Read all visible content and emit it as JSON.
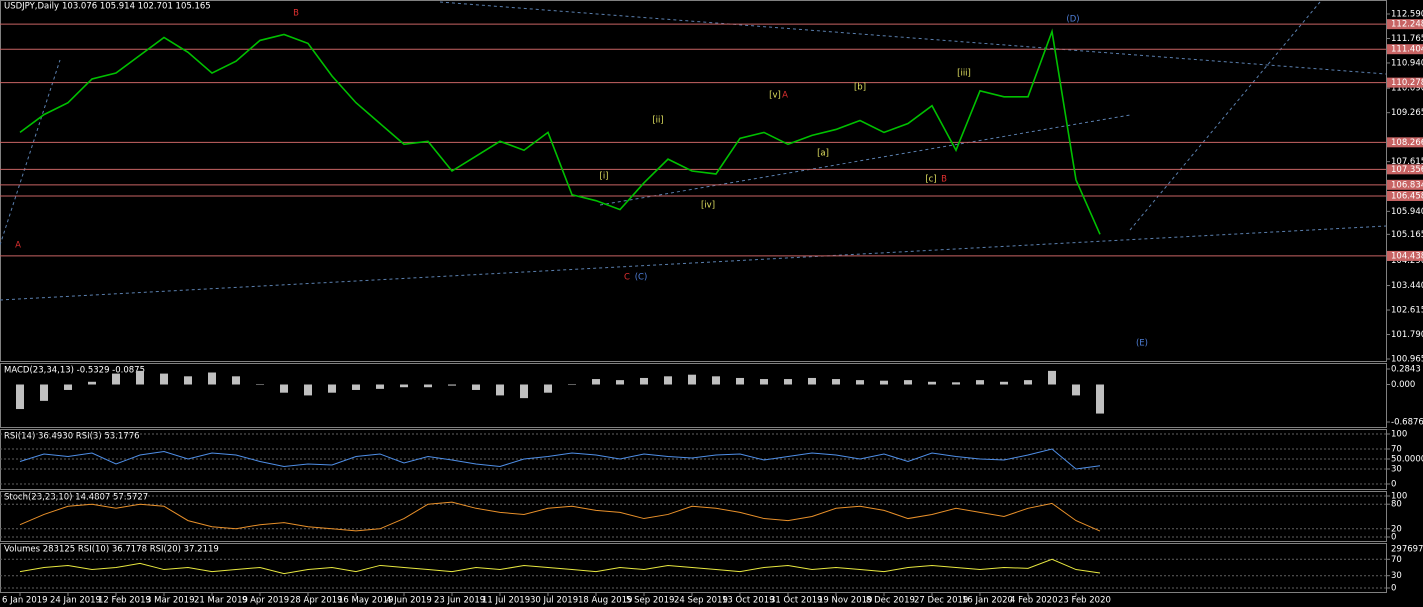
{
  "chart_data": [
    {
      "type": "line",
      "title": "USDJPY,Daily",
      "subtitle": "103.076 105.914 102.701 105.165",
      "categories": [
        "6 Jan 2019",
        null,
        "24 Jan 2019",
        null,
        "12 Feb 2019",
        null,
        "3 Mar 2019",
        null,
        "21 Mar 2019",
        null,
        "9 Apr 2019",
        null,
        "28 Apr 2019",
        null,
        "16 May 2019",
        null,
        "4 Jun 2019",
        null,
        "23 Jun 2019",
        null,
        "11 Jul 2019",
        null,
        "30 Jul 2019",
        null,
        "18 Aug 2019",
        null,
        "5 Sep 2019",
        null,
        "24 Sep 2019",
        null,
        "13 Oct 2019",
        null,
        "31 Oct 2019",
        null,
        "19 Nov 2019",
        null,
        "8 Dec 2019",
        null,
        "27 Dec 2019",
        null,
        "16 Jan 2020",
        null,
        "4 Feb 2020",
        null,
        "23 Feb 2020",
        null
      ],
      "values": [
        108.6,
        109.2,
        109.6,
        110.4,
        110.6,
        111.2,
        111.8,
        111.3,
        110.6,
        111.0,
        111.7,
        111.9,
        111.6,
        110.5,
        109.6,
        108.9,
        108.2,
        108.3,
        107.3,
        107.8,
        108.3,
        108.0,
        108.6,
        106.5,
        106.3,
        106.0,
        106.9,
        107.7,
        107.3,
        107.2,
        108.4,
        108.6,
        108.2,
        108.5,
        108.7,
        109.0,
        108.6,
        108.9,
        109.5,
        108.0,
        110.0,
        109.8,
        109.8,
        112.0,
        107.0,
        105.165
      ],
      "color": "#00c000",
      "ylim": [
        100.965,
        112.59
      ],
      "yticks": [
        {
          "value": 112.59,
          "label": "112.590"
        },
        111.765,
        {
          "value": 110.94,
          "label": "110.940"
        },
        {
          "value": 110.09,
          "label": "110.090"
        },
        109.265,
        107.615,
        {
          "value": 105.94,
          "label": "105.940"
        },
        105.165,
        {
          "value": 104.29,
          "label": "104.290"
        },
        {
          "value": 103.44,
          "label": "103.440"
        },
        102.615,
        {
          "value": 101.79,
          "label": "101.790"
        },
        100.965
      ],
      "levels": [
        112.248,
        111.404,
        110.278,
        108.266,
        107.356,
        106.834,
        106.458,
        104.438
      ],
      "level_color": "#c86464",
      "annotations": [
        {
          "text": "A",
          "color": "#e03030"
        },
        {
          "text": "B",
          "color": "#e03030"
        },
        {
          "text": "C",
          "color": "#e03030"
        },
        {
          "text": "(C)",
          "color": "#4f7fd8"
        },
        {
          "text": "(D)",
          "color": "#4f7fd8"
        },
        {
          "text": "(E)",
          "color": "#4f7fd8"
        },
        {
          "text": "A",
          "color": "#e03030"
        },
        {
          "text": "B",
          "color": "#e03030"
        },
        {
          "text": "[i]",
          "color": "#e0e060"
        },
        {
          "text": "[ii]",
          "color": "#e0e060"
        },
        {
          "text": "[iii]",
          "color": "#e0e060"
        },
        {
          "text": "[iv]",
          "color": "#e0e060"
        },
        {
          "text": "[v]",
          "color": "#e0e060"
        },
        {
          "text": "[a]",
          "color": "#e0e060"
        },
        {
          "text": "[b]",
          "color": "#e0e060"
        },
        {
          "text": "[c]",
          "color": "#e0e060"
        }
      ]
    },
    {
      "type": "bar",
      "title": "MACD(23,34,13) -0.5329 -0.0875",
      "color": "#c0c0c0",
      "values": [
        -0.45,
        -0.3,
        -0.1,
        0.05,
        0.2,
        0.25,
        0.2,
        0.15,
        0.22,
        0.15,
        0.0,
        -0.15,
        -0.2,
        -0.15,
        -0.1,
        -0.08,
        -0.05,
        -0.05,
        -0.02,
        -0.1,
        -0.2,
        -0.25,
        -0.15,
        0.0,
        0.1,
        0.08,
        0.12,
        0.15,
        0.18,
        0.15,
        0.12,
        0.1,
        0.1,
        0.12,
        0.1,
        0.08,
        0.07,
        0.08,
        0.05,
        0.04,
        0.08,
        0.05,
        0.08,
        0.25,
        -0.2,
        -0.5329
      ],
      "ylim": [
        -0.6876,
        0.2843
      ],
      "yticks": [
        0.2843,
        {
          "value": 0,
          "label": "0.000"
        },
        -0.6876
      ]
    },
    {
      "type": "line",
      "title": "RSI(14) 36.4930 RSI(3) 53.1776",
      "color": "#4f8fe8",
      "values": [
        45,
        60,
        55,
        62,
        40,
        58,
        65,
        50,
        62,
        58,
        45,
        35,
        40,
        38,
        55,
        60,
        42,
        55,
        48,
        40,
        35,
        50,
        55,
        62,
        58,
        50,
        60,
        55,
        52,
        58,
        60,
        48,
        55,
        62,
        58,
        50,
        60,
        45,
        62,
        55,
        50,
        48,
        58,
        70,
        30,
        36.49
      ],
      "ylim": [
        0,
        100
      ],
      "yticks": [
        100,
        70,
        {
          "value": 50,
          "label": "50.0000"
        },
        30,
        0
      ]
    },
    {
      "type": "line",
      "title": "Stoch(23,23,10) 14.4807 57.5727",
      "color": "#e8902a",
      "values": [
        30,
        55,
        75,
        80,
        70,
        80,
        75,
        40,
        25,
        20,
        30,
        35,
        25,
        20,
        15,
        20,
        45,
        80,
        85,
        70,
        60,
        55,
        70,
        75,
        65,
        60,
        45,
        55,
        75,
        70,
        60,
        45,
        40,
        50,
        70,
        75,
        65,
        45,
        55,
        70,
        60,
        50,
        70,
        82,
        40,
        14.48
      ],
      "ylim": [
        0,
        100
      ],
      "yticks": [
        100,
        80,
        20,
        0
      ]
    },
    {
      "type": "line",
      "title": "Volumes 283125 RSI(10) 36.7178 RSI(20) 37.2119",
      "color": "#e8e840",
      "values": [
        40,
        50,
        55,
        45,
        50,
        60,
        45,
        50,
        40,
        45,
        50,
        35,
        45,
        50,
        40,
        55,
        50,
        45,
        40,
        50,
        45,
        55,
        50,
        45,
        40,
        50,
        45,
        55,
        50,
        45,
        40,
        50,
        55,
        45,
        50,
        45,
        40,
        50,
        55,
        50,
        45,
        50,
        48,
        70,
        45,
        36.72
      ],
      "ylim": [
        0,
        100
      ],
      "yticks": [
        70,
        30,
        0
      ],
      "volume_max": 297697
    }
  ]
}
